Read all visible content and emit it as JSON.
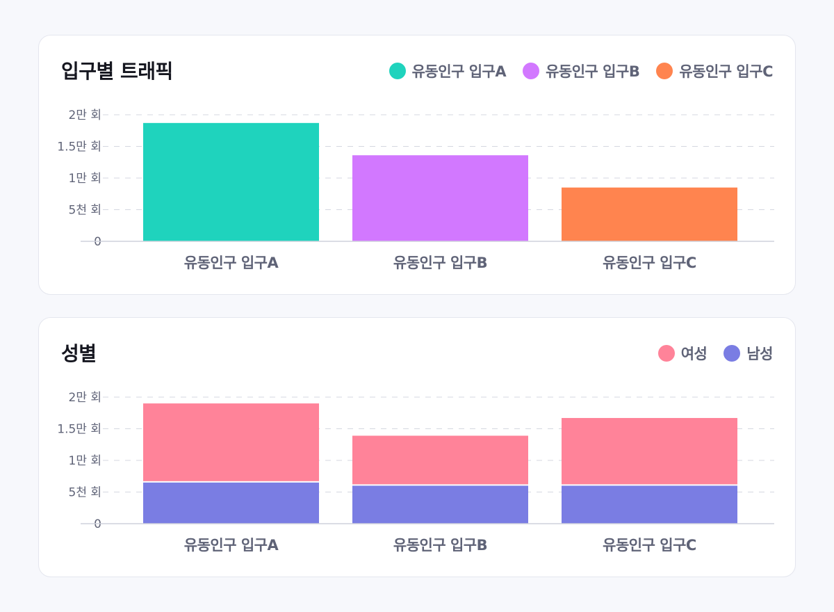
{
  "chart_data": [
    {
      "type": "bar",
      "title": "입구별 트래픽",
      "categories": [
        "유동인구 입구A",
        "유동인구 입구B",
        "유동인구 입구C"
      ],
      "series": [
        {
          "name": "유동인구 입구A",
          "values": [
            18700,
            null,
            null
          ],
          "color": "#1fd3bd"
        },
        {
          "name": "유동인구 입구B",
          "values": [
            null,
            13600,
            null
          ],
          "color": "#d278ff"
        },
        {
          "name": "유동인구 입구C",
          "values": [
            null,
            null,
            8500
          ],
          "color": "#ff844f"
        }
      ],
      "ylim": [
        0,
        20000
      ],
      "yticks": [
        {
          "value": 0,
          "label": "0"
        },
        {
          "value": 5000,
          "label": "5천 회"
        },
        {
          "value": 10000,
          "label": "1만 회"
        },
        {
          "value": 15000,
          "label": "1.5만 회"
        },
        {
          "value": 20000,
          "label": "2만 회"
        }
      ],
      "grid": "dashed",
      "legend": "top-right"
    },
    {
      "type": "bar",
      "stacked": true,
      "title": "성별",
      "categories": [
        "유동인구 입구A",
        "유동인구 입구B",
        "유동인구 입구C"
      ],
      "series": [
        {
          "name": "남성",
          "values": [
            6500,
            6000,
            6000
          ],
          "color": "#7a7de3"
        },
        {
          "name": "여성",
          "values": [
            12500,
            7900,
            10700
          ],
          "color": "#ff8399"
        }
      ],
      "legend_order": [
        "여성",
        "남성"
      ],
      "ylim": [
        0,
        20000
      ],
      "yticks": [
        {
          "value": 0,
          "label": "0"
        },
        {
          "value": 5000,
          "label": "5천 회"
        },
        {
          "value": 10000,
          "label": "1만 회"
        },
        {
          "value": 15000,
          "label": "1.5만 회"
        },
        {
          "value": 20000,
          "label": "2만 회"
        }
      ],
      "grid": "dashed",
      "legend": "top-right"
    }
  ]
}
